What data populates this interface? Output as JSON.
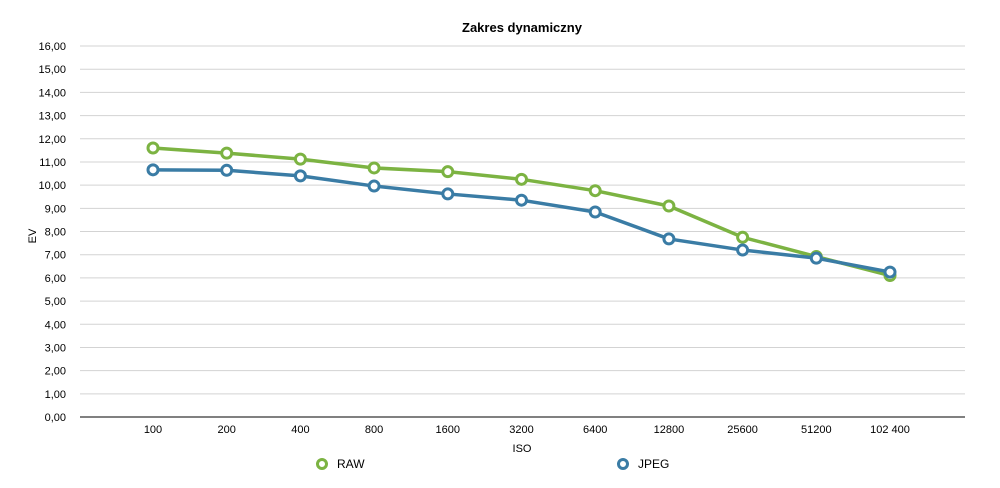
{
  "chart_data": {
    "type": "line",
    "title": "Zakres dynamiczny",
    "xlabel": "ISO",
    "ylabel": "EV",
    "categories": [
      "100",
      "200",
      "400",
      "800",
      "1600",
      "3200",
      "6400",
      "12800",
      "25600",
      "51200",
      "102 400"
    ],
    "ylim": [
      0,
      16
    ],
    "yticks": [
      "0,00",
      "1,00",
      "2,00",
      "3,00",
      "4,00",
      "5,00",
      "6,00",
      "7,00",
      "8,00",
      "9,00",
      "10,00",
      "11,00",
      "12,00",
      "13,00",
      "14,00",
      "15,00",
      "16,00"
    ],
    "grid": true,
    "legend_position": "bottom",
    "series": [
      {
        "name": "RAW",
        "color": "#7cb342",
        "values": [
          11.6,
          11.38,
          11.12,
          10.74,
          10.58,
          10.25,
          9.76,
          9.1,
          7.75,
          6.92,
          6.1
        ]
      },
      {
        "name": "JPEG",
        "color": "#3a7ca5",
        "values": [
          10.66,
          10.64,
          10.4,
          9.96,
          9.62,
          9.35,
          8.84,
          7.68,
          7.2,
          6.85,
          6.25
        ]
      }
    ]
  }
}
